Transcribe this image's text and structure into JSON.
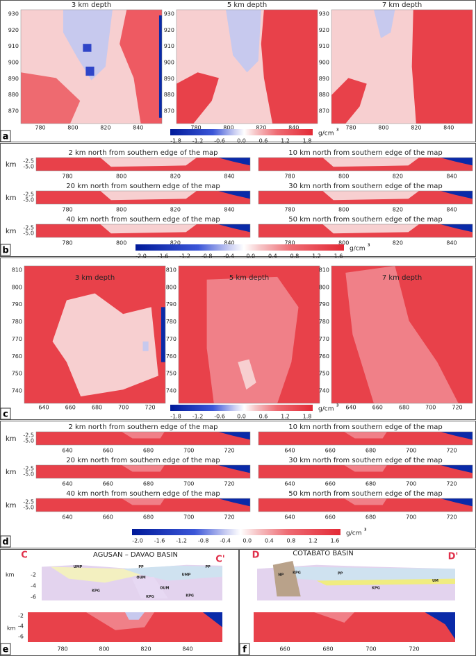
{
  "panels": {
    "a": {
      "label": "a",
      "maps": [
        {
          "title": "3 km depth"
        },
        {
          "title": "5 km depth"
        },
        {
          "title": "7 km depth"
        }
      ],
      "yticks": [
        "930",
        "920",
        "910",
        "900",
        "890",
        "880",
        "870"
      ],
      "xticks": [
        "780",
        "800",
        "820",
        "840"
      ],
      "colorbar": {
        "ticks": [
          "-1.8",
          "-1.2",
          "-0.6",
          "0.0",
          "0.6",
          "1.2",
          "1.8"
        ],
        "unit": "g/cm",
        "unit_sup": "3"
      }
    },
    "b": {
      "label": "b",
      "axis_label": "km",
      "depth_ticks": [
        "-2.5",
        "-5.0"
      ],
      "profiles": [
        "2 km north from southern edge of the map",
        "10 km north from southern edge of the map",
        "20 km north from southern edge of the map",
        "30 km north from southern edge of the map",
        "40 km north from southern edge of the map",
        "50 km north from southern edge of the map"
      ],
      "xticks": [
        "780",
        "800",
        "820",
        "840"
      ],
      "colorbar": {
        "ticks": [
          "-2.0",
          "-1.6",
          "-1.2",
          "-0.8",
          "-0.4",
          "0.0",
          "0.4",
          "0.8",
          "1.2",
          "1.6"
        ],
        "unit": "g/cm",
        "unit_sup": "3"
      }
    },
    "c": {
      "label": "c",
      "maps": [
        {
          "title": "3 km depth"
        },
        {
          "title": "5 km depth"
        },
        {
          "title": "7 km depth"
        }
      ],
      "yticks": [
        "810",
        "800",
        "790",
        "780",
        "770",
        "760",
        "750",
        "740"
      ],
      "xticks": [
        "640",
        "660",
        "680",
        "700",
        "720"
      ],
      "colorbar": {
        "ticks": [
          "-1.8",
          "-1.2",
          "-0.6",
          "0.0",
          "0.6",
          "1.2",
          "1.8"
        ],
        "unit": "g/cm",
        "unit_sup": "3"
      }
    },
    "d": {
      "label": "d",
      "axis_label": "km",
      "depth_ticks": [
        "-2.5",
        "-5.0"
      ],
      "profiles": [
        "2 km north from southern edge of the map",
        "10 km north from southern edge of the map",
        "20 km north from southern edge of the map",
        "30 km north from southern edge of the map",
        "40 km north from southern edge of the map",
        "50 km north from southern edge of the map"
      ],
      "xticks": [
        "640",
        "660",
        "680",
        "700",
        "720"
      ],
      "colorbar": {
        "ticks": [
          "-2.0",
          "-1.6",
          "-1.2",
          "-0.8",
          "-0.4",
          "0.0",
          "0.4",
          "0.8",
          "1.2",
          "1.6"
        ],
        "unit": "g/cm",
        "unit_sup": "3"
      }
    },
    "e": {
      "label": "e",
      "title": "AGUSAN – DAVAO BASIN",
      "start": "C",
      "end": "C'",
      "units": [
        "UMP",
        "PP",
        "OUM",
        "UMP",
        "KPG",
        "OUM",
        "KPG",
        "KPG",
        "PP"
      ],
      "axis_label": "km",
      "depth_ticks": [
        "-2",
        "-4",
        "-6"
      ],
      "xticks": [
        "780",
        "800",
        "820",
        "840"
      ]
    },
    "f": {
      "label": "f",
      "title": "COTABATO BASIN",
      "start": "D",
      "end": "D'",
      "units": [
        "NP",
        "KPG",
        "PP",
        "UM",
        "KPG"
      ],
      "xticks": [
        "660",
        "680",
        "700",
        "720"
      ]
    }
  }
}
